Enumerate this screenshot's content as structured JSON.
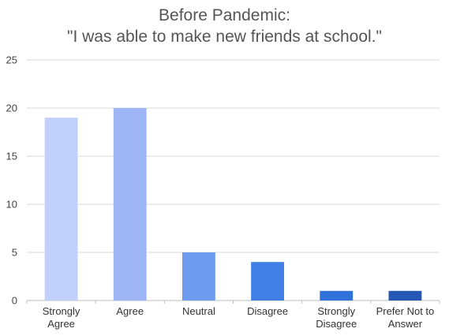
{
  "chart_data": {
    "type": "bar",
    "title_lines": [
      "Before Pandemic:",
      "\"I was able to make new friends at school.\""
    ],
    "xlabel": "",
    "ylabel": "",
    "categories": [
      [
        "Strongly",
        "Agree"
      ],
      [
        "Agree"
      ],
      [
        "Neutral"
      ],
      [
        "Disagree"
      ],
      [
        "Strongly",
        "Disagree"
      ],
      [
        "Prefer Not to",
        "Answer"
      ]
    ],
    "values": [
      19,
      20,
      5,
      4,
      1,
      1
    ],
    "colors": [
      "#c1cffb",
      "#9fb6f6",
      "#6c9bf0",
      "#3f7fe6",
      "#3171da",
      "#2557b4"
    ],
    "ylim": [
      0,
      25
    ],
    "yticks": [
      0,
      5,
      10,
      15,
      20,
      25
    ],
    "grid": true,
    "gridColor": "#d9d9d9",
    "axisColor": "#bdbdbd"
  }
}
